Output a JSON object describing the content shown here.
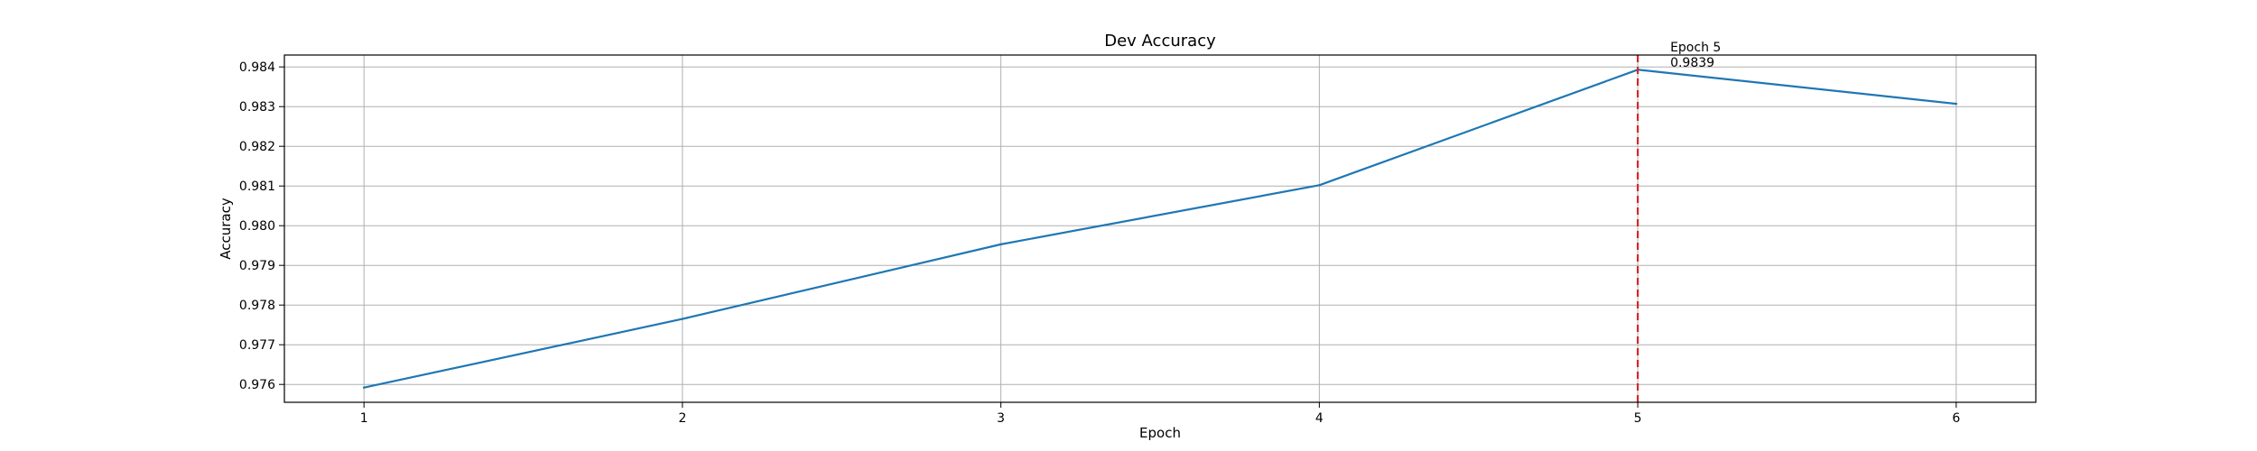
{
  "chart_data": {
    "type": "line",
    "title": "Dev Accuracy",
    "xlabel": "Epoch",
    "ylabel": "Accuracy",
    "x": [
      1,
      2,
      3,
      4,
      5,
      6
    ],
    "series": [
      {
        "values": [
          0.97592,
          0.97765,
          0.97953,
          0.98102,
          0.98393,
          0.98307
        ]
      }
    ],
    "xlim": [
      0.75,
      6.25
    ],
    "ylim": [
      0.97555,
      0.9843
    ],
    "xticks": [
      "1",
      "2",
      "3",
      "4",
      "5",
      "6"
    ],
    "yticks": [
      "0.976",
      "0.977",
      "0.978",
      "0.979",
      "0.980",
      "0.981",
      "0.982",
      "0.983",
      "0.984"
    ],
    "grid": true,
    "line_color": "#1f77b4",
    "marker_line": {
      "x": 5,
      "color": "#d62728",
      "style": "dashed"
    },
    "annotation": {
      "line1": "Epoch 5",
      "line2": "0.9839"
    }
  }
}
